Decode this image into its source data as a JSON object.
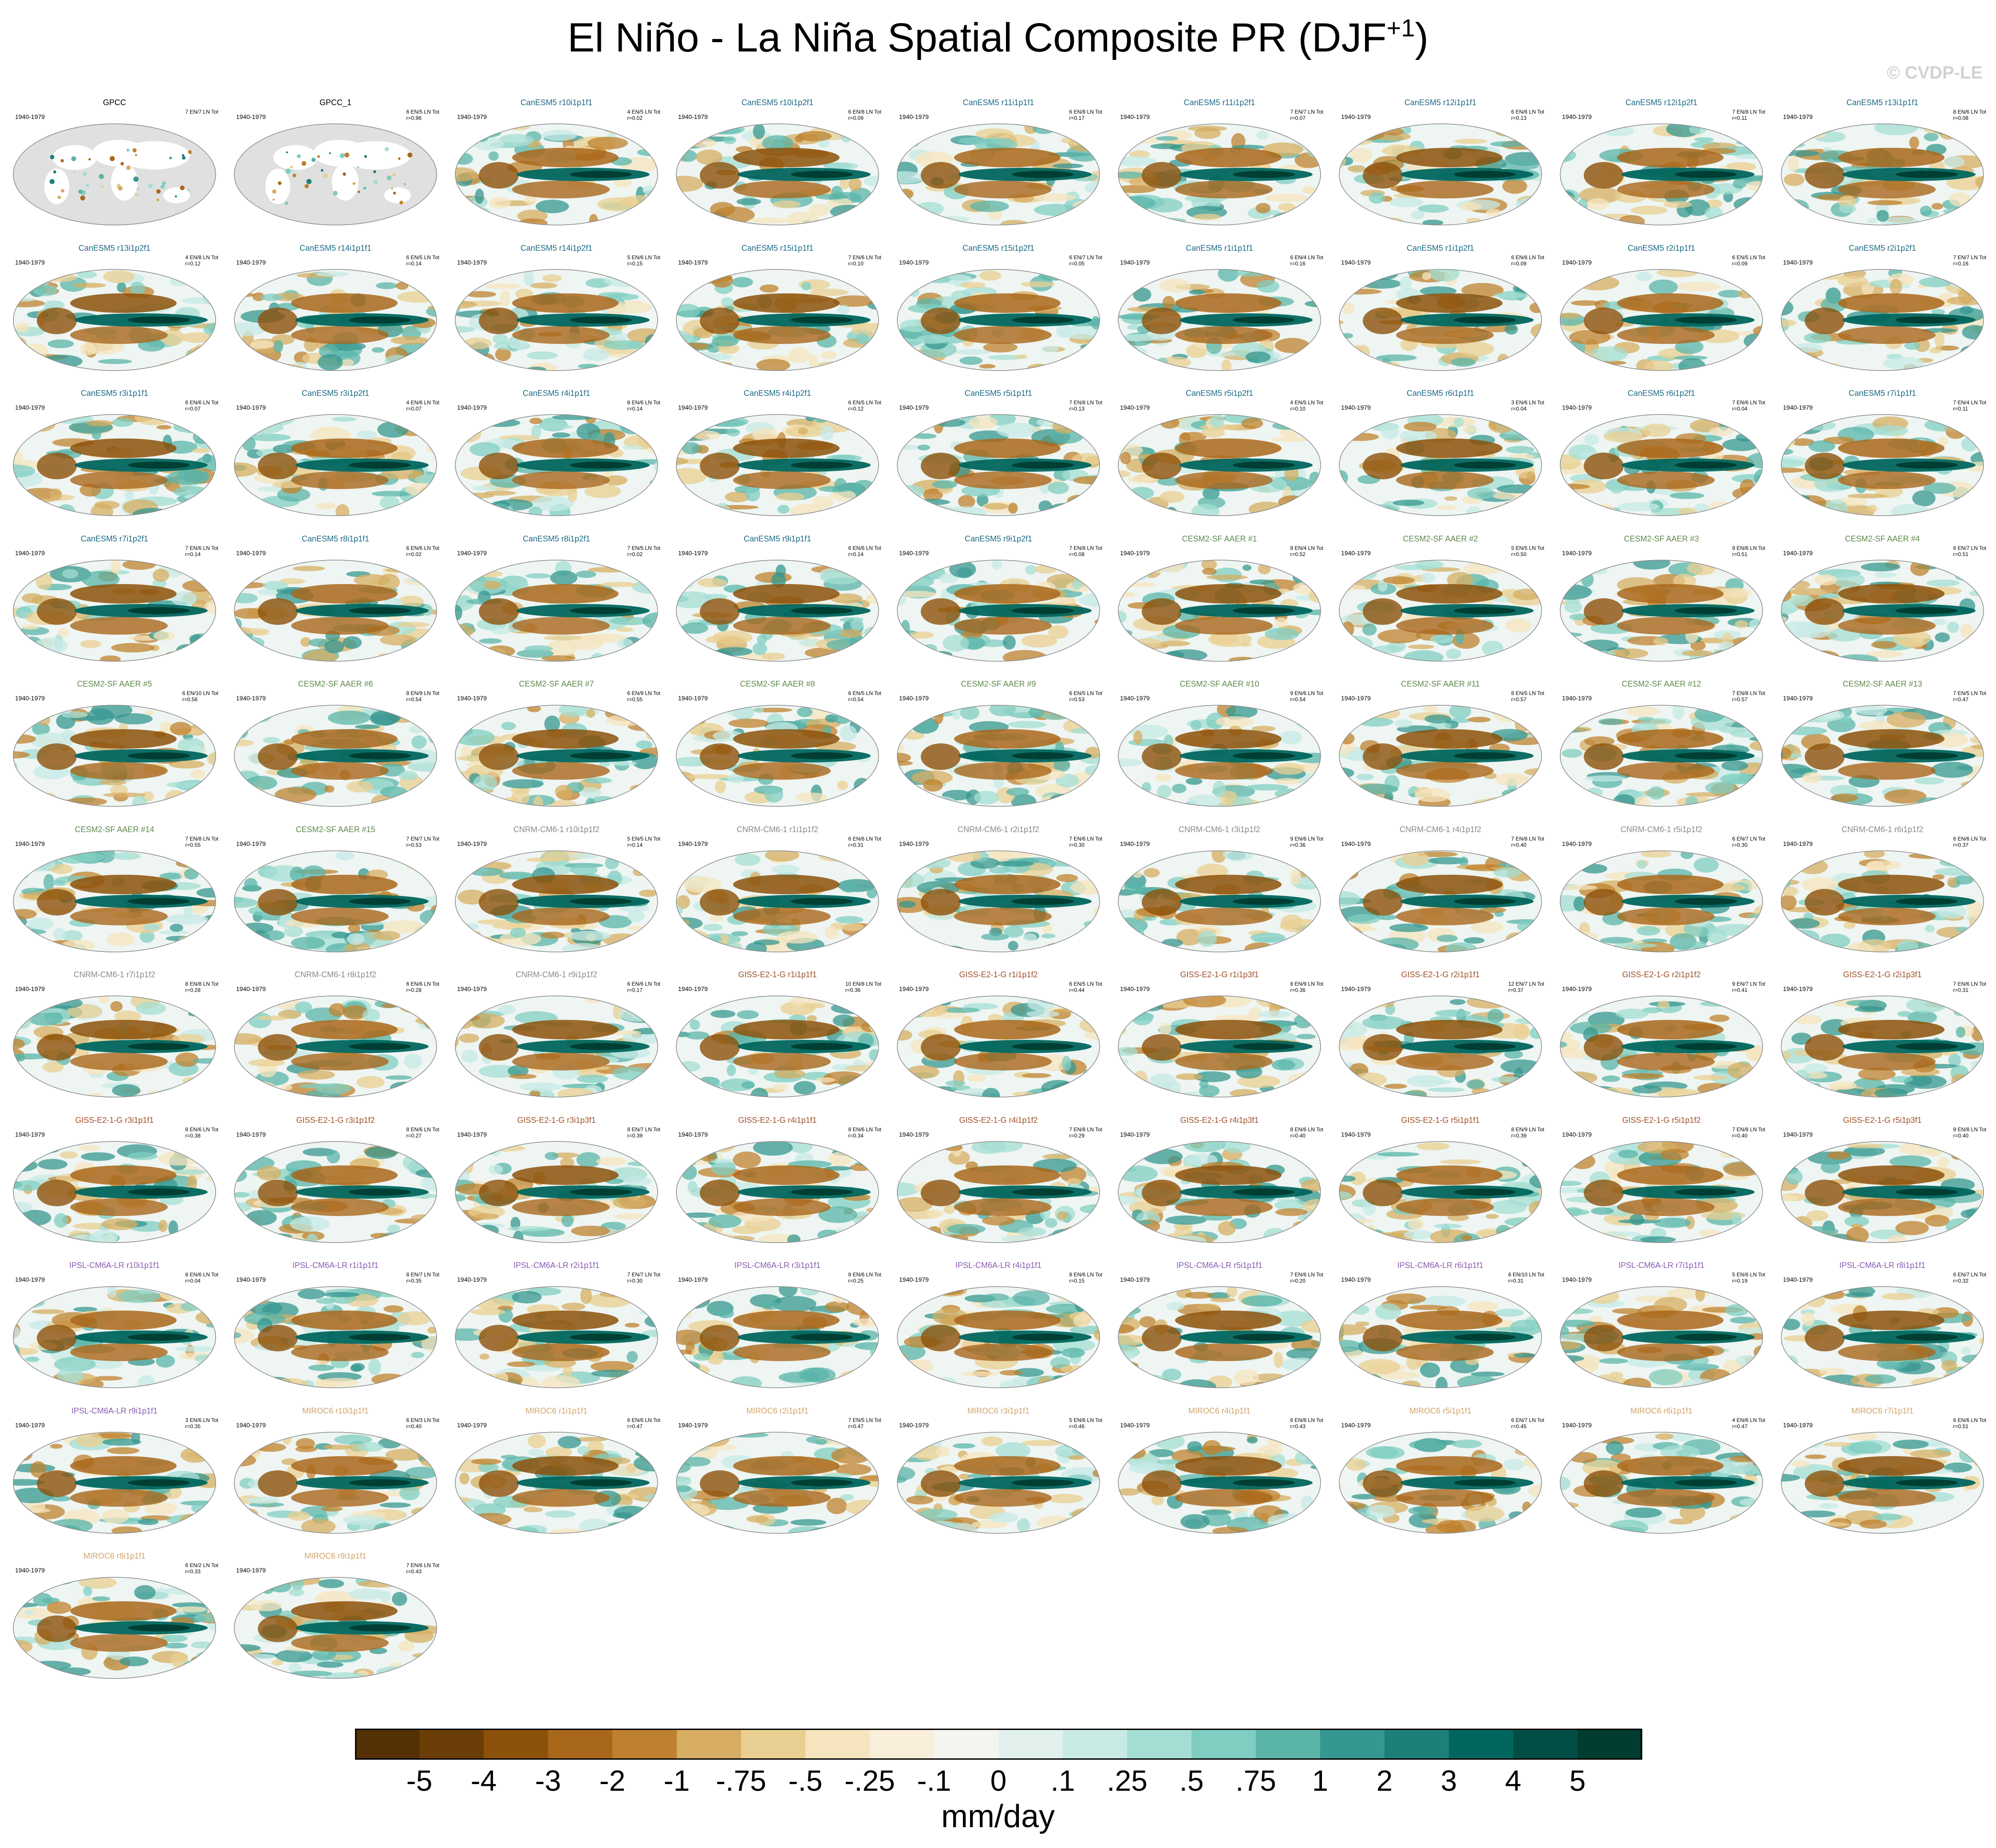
{
  "title_main": "El Niño - La Niña Spatial Composite PR (DJF",
  "title_sup": "+1",
  "title_close": ")",
  "watermark": "© CVDP-LE",
  "units": "mm/day",
  "period": "1940-1979",
  "colorbar": {
    "colors": [
      "#543005",
      "#6b3d07",
      "#8c510a",
      "#a9671b",
      "#bf812d",
      "#d6ad62",
      "#e9cf91",
      "#f5e4bd",
      "#f8eed9",
      "#f5f5f0",
      "#e2f1ee",
      "#c7eae5",
      "#a4ddd3",
      "#80cdc1",
      "#5ab4a8",
      "#35978f",
      "#1c8078",
      "#01665e",
      "#014e46",
      "#003c30"
    ],
    "labels": [
      "-5",
      "-4",
      "-3",
      "-2",
      "-1",
      "-.75",
      "-.5",
      "-.25",
      "-.1",
      "0",
      ".1",
      ".25",
      ".5",
      ".75",
      "1",
      "2",
      "3",
      "4",
      "5"
    ]
  },
  "ensemble_colors": {
    "obs": "#000000",
    "CanESM5": "#1b6a86",
    "CESM2": "#5f8a4d",
    "CNRM": "#8a8a8a",
    "GISS": "#a0502a",
    "IPSL": "#8a5bb0",
    "MIROC": "#d1a46a"
  },
  "panels": [
    {
      "title": "GPCC",
      "ens": "obs",
      "stats": "7 EN/7 LN Tot",
      "r": ""
    },
    {
      "title": "GPCC_1",
      "ens": "obs",
      "stats": "6 EN/5 LN Tot",
      "r": "r=0.96"
    },
    {
      "title": "CanESM5 r10i1p1f1",
      "ens": "CanESM5",
      "stats": "4 EN/5 LN Tot",
      "r": "r=0.02"
    },
    {
      "title": "CanESM5 r10i1p2f1",
      "ens": "CanESM5",
      "stats": "6 EN/8 LN Tot",
      "r": "r=0.09"
    },
    {
      "title": "CanESM5 r11i1p1f1",
      "ens": "CanESM5",
      "stats": "6 EN/8 LN Tot",
      "r": "r=0.17"
    },
    {
      "title": "CanESM5 r11i1p2f1",
      "ens": "CanESM5",
      "stats": "7 EN/7 LN Tot",
      "r": "r=0.07"
    },
    {
      "title": "CanESM5 r12i1p1f1",
      "ens": "CanESM5",
      "stats": "6 EN/6 LN Tot",
      "r": "r=0.13"
    },
    {
      "title": "CanESM5 r12i1p2f1",
      "ens": "CanESM5",
      "stats": "7 EN/8 LN Tot",
      "r": "r=0.11"
    },
    {
      "title": "CanESM5 r13i1p1f1",
      "ens": "CanESM5",
      "stats": "8 EN/6 LN Tot",
      "r": "r=0.08"
    },
    {
      "title": "CanESM5 r13i1p2f1",
      "ens": "CanESM5",
      "stats": "4 EN/8 LN Tot",
      "r": "r=0.12"
    },
    {
      "title": "CanESM5 r14i1p1f1",
      "ens": "CanESM5",
      "stats": "6 EN/5 LN Tot",
      "r": "r=0.14"
    },
    {
      "title": "CanESM5 r14i1p2f1",
      "ens": "CanESM5",
      "stats": "5 EN/6 LN Tot",
      "r": "r=0.15"
    },
    {
      "title": "CanESM5 r15i1p1f1",
      "ens": "CanESM5",
      "stats": "7 EN/6 LN Tot",
      "r": "r=0.10"
    },
    {
      "title": "CanESM5 r15i1p2f1",
      "ens": "CanESM5",
      "stats": "6 EN/7 LN Tot",
      "r": "r=0.05"
    },
    {
      "title": "CanESM5 r1i1p1f1",
      "ens": "CanESM5",
      "stats": "6 EN/4 LN Tot",
      "r": "r=0.16"
    },
    {
      "title": "CanESM5 r1i1p2f1",
      "ens": "CanESM5",
      "stats": "6 EN/6 LN Tot",
      "r": "r=0.09"
    },
    {
      "title": "CanESM5 r2i1p1f1",
      "ens": "CanESM5",
      "stats": "6 EN/5 LN Tot",
      "r": "r=0.09"
    },
    {
      "title": "CanESM5 r2i1p2f1",
      "ens": "CanESM5",
      "stats": "7 EN/7 LN Tot",
      "r": "r=0.16"
    },
    {
      "title": "CanESM5 r3i1p1f1",
      "ens": "CanESM5",
      "stats": "6 EN/6 LN Tot",
      "r": "r=0.07"
    },
    {
      "title": "CanESM5 r3i1p2f1",
      "ens": "CanESM5",
      "stats": "4 EN/6 LN Tot",
      "r": "r=0.07"
    },
    {
      "title": "CanESM5 r4i1p1f1",
      "ens": "CanESM5",
      "stats": "8 EN/6 LN Tot",
      "r": "r=0.14"
    },
    {
      "title": "CanESM5 r4i1p2f1",
      "ens": "CanESM5",
      "stats": "6 EN/5 LN Tot",
      "r": "r=0.12"
    },
    {
      "title": "CanESM5 r5i1p1f1",
      "ens": "CanESM5",
      "stats": "7 EN/8 LN Tot",
      "r": "r=0.13"
    },
    {
      "title": "CanESM5 r5i1p2f1",
      "ens": "CanESM5",
      "stats": "4 EN/5 LN Tot",
      "r": "r=0.10"
    },
    {
      "title": "CanESM5 r6i1p1f1",
      "ens": "CanESM5",
      "stats": "3 EN/6 LN Tot",
      "r": "r=0.04"
    },
    {
      "title": "CanESM5 r6i1p2f1",
      "ens": "CanESM5",
      "stats": "7 EN/6 LN Tot",
      "r": "r=0.04"
    },
    {
      "title": "CanESM5 r7i1p1f1",
      "ens": "CanESM5",
      "stats": "7 EN/4 LN Tot",
      "r": "r=0.11"
    },
    {
      "title": "CanESM5 r7i1p2f1",
      "ens": "CanESM5",
      "stats": "7 EN/6 LN Tot",
      "r": "r=0.14"
    },
    {
      "title": "CanESM5 r8i1p1f1",
      "ens": "CanESM5",
      "stats": "6 EN/6 LN Tot",
      "r": "r=0.02"
    },
    {
      "title": "CanESM5 r8i1p2f1",
      "ens": "CanESM5",
      "stats": "7 EN/5 LN Tot",
      "r": "r=0.02"
    },
    {
      "title": "CanESM5 r9i1p1f1",
      "ens": "CanESM5",
      "stats": "6 EN/6 LN Tot",
      "r": "r=0.14"
    },
    {
      "title": "CanESM5 r9i1p2f1",
      "ens": "CanESM5",
      "stats": "7 EN/8 LN Tot",
      "r": "r=0.08"
    },
    {
      "title": "CESM2-SF AAER #1",
      "ens": "CESM2",
      "stats": "8 EN/4 LN Tot",
      "r": "r=0.52"
    },
    {
      "title": "CESM2-SF AAER #2",
      "ens": "CESM2",
      "stats": "5 EN/5 LN Tot",
      "r": "r=0.50"
    },
    {
      "title": "CESM2-SF AAER #3",
      "ens": "CESM2",
      "stats": "9 EN/6 LN Tot",
      "r": "r=0.51"
    },
    {
      "title": "CESM2-SF AAER #4",
      "ens": "CESM2",
      "stats": "6 EN/7 LN Tot",
      "r": "r=0.51"
    },
    {
      "title": "CESM2-SF AAER #5",
      "ens": "CESM2",
      "stats": "6 EN/10 LN Tot",
      "r": "r=0.56"
    },
    {
      "title": "CESM2-SF AAER #6",
      "ens": "CESM2",
      "stats": "8 EN/9 LN Tot",
      "r": "r=0.54"
    },
    {
      "title": "CESM2-SF AAER #7",
      "ens": "CESM2",
      "stats": "6 EN/9 LN Tot",
      "r": "r=0.55"
    },
    {
      "title": "CESM2-SF AAER #8",
      "ens": "CESM2",
      "stats": "6 EN/5 LN Tot",
      "r": "r=0.54"
    },
    {
      "title": "CESM2-SF AAER #9",
      "ens": "CESM2",
      "stats": "6 EN/5 LN Tot",
      "r": "r=0.53"
    },
    {
      "title": "CESM2-SF AAER #10",
      "ens": "CESM2",
      "stats": "9 EN/6 LN Tot",
      "r": "r=0.54"
    },
    {
      "title": "CESM2-SF AAER #11",
      "ens": "CESM2",
      "stats": "8 EN/5 LN Tot",
      "r": "r=0.57"
    },
    {
      "title": "CESM2-SF AAER #12",
      "ens": "CESM2",
      "stats": "7 EN/8 LN Tot",
      "r": "r=0.57"
    },
    {
      "title": "CESM2-SF AAER #13",
      "ens": "CESM2",
      "stats": "7 EN/5 LN Tot",
      "r": "r=0.47"
    },
    {
      "title": "CESM2-SF AAER #14",
      "ens": "CESM2",
      "stats": "7 EN/8 LN Tot",
      "r": "r=0.55"
    },
    {
      "title": "CESM2-SF AAER #15",
      "ens": "CESM2",
      "stats": "7 EN/7 LN Tot",
      "r": "r=0.53"
    },
    {
      "title": "CNRM-CM6-1 r10i1p1f2",
      "ens": "CNRM",
      "stats": "5 EN/5 LN Tot",
      "r": "r=0.14"
    },
    {
      "title": "CNRM-CM6-1 r1i1p1f2",
      "ens": "CNRM",
      "stats": "6 EN/6 LN Tot",
      "r": "r=0.31"
    },
    {
      "title": "CNRM-CM6-1 r2i1p1f2",
      "ens": "CNRM",
      "stats": "7 EN/6 LN Tot",
      "r": "r=0.30"
    },
    {
      "title": "CNRM-CM6-1 r3i1p1f2",
      "ens": "CNRM",
      "stats": "9 EN/6 LN Tot",
      "r": "r=0.36"
    },
    {
      "title": "CNRM-CM6-1 r4i1p1f2",
      "ens": "CNRM",
      "stats": "7 EN/8 LN Tot",
      "r": "r=0.40"
    },
    {
      "title": "CNRM-CM6-1 r5i1p1f2",
      "ens": "CNRM",
      "stats": "6 EN/7 LN Tot",
      "r": "r=0.30"
    },
    {
      "title": "CNRM-CM6-1 r6i1p1f2",
      "ens": "CNRM",
      "stats": "6 EN/6 LN Tot",
      "r": "r=0.37"
    },
    {
      "title": "CNRM-CM6-1 r7i1p1f2",
      "ens": "CNRM",
      "stats": "8 EN/8 LN Tot",
      "r": "r=0.28"
    },
    {
      "title": "CNRM-CM6-1 r8i1p1f2",
      "ens": "CNRM",
      "stats": "6 EN/6 LN Tot",
      "r": "r=0.28"
    },
    {
      "title": "CNRM-CM6-1 r9i1p1f2",
      "ens": "CNRM",
      "stats": "6 EN/6 LN Tot",
      "r": "r=0.17"
    },
    {
      "title": "GISS-E2-1-G r1i1p1f1",
      "ens": "GISS",
      "stats": "10 EN/8 LN Tot",
      "r": "r=0.36"
    },
    {
      "title": "GISS-E2-1-G r1i1p1f2",
      "ens": "GISS",
      "stats": "6 EN/5 LN Tot",
      "r": "r=0.44"
    },
    {
      "title": "GISS-E2-1-G r1i1p3f1",
      "ens": "GISS",
      "stats": "8 EN/9 LN Tot",
      "r": "r=0.36"
    },
    {
      "title": "GISS-E2-1-G r2i1p1f1",
      "ens": "GISS",
      "stats": "12 EN/7 LN Tot",
      "r": "r=0.37"
    },
    {
      "title": "GISS-E2-1-G r2i1p1f2",
      "ens": "GISS",
      "stats": "9 EN/7 LN Tot",
      "r": "r=0.41"
    },
    {
      "title": "GISS-E2-1-G r2i1p3f1",
      "ens": "GISS",
      "stats": "7 EN/6 LN Tot",
      "r": "r=0.31"
    },
    {
      "title": "GISS-E2-1-G r3i1p1f1",
      "ens": "GISS",
      "stats": "8 EN/6 LN Tot",
      "r": "r=0.38"
    },
    {
      "title": "GISS-E2-1-G r3i1p1f2",
      "ens": "GISS",
      "stats": "8 EN/6 LN Tot",
      "r": "r=0.27"
    },
    {
      "title": "GISS-E2-1-G r3i1p3f1",
      "ens": "GISS",
      "stats": "8 EN/7 LN Tot",
      "r": "r=0.39"
    },
    {
      "title": "GISS-E2-1-G r4i1p1f1",
      "ens": "GISS",
      "stats": "8 EN/6 LN Tot",
      "r": "r=0.34"
    },
    {
      "title": "GISS-E2-1-G r4i1p1f2",
      "ens": "GISS",
      "stats": "7 EN/8 LN Tot",
      "r": "r=0.29"
    },
    {
      "title": "GISS-E2-1-G r4i1p3f1",
      "ens": "GISS",
      "stats": "8 EN/6 LN Tot",
      "r": "r=0.40"
    },
    {
      "title": "GISS-E2-1-G r5i1p1f1",
      "ens": "GISS",
      "stats": "8 EN/9 LN Tot",
      "r": "r=0.39"
    },
    {
      "title": "GISS-E2-1-G r5i1p1f2",
      "ens": "GISS",
      "stats": "7 EN/8 LN Tot",
      "r": "r=0.40"
    },
    {
      "title": "GISS-E2-1-G r5i1p3f1",
      "ens": "GISS",
      "stats": "9 EN/8 LN Tot",
      "r": "r=0.40"
    },
    {
      "title": "IPSL-CM6A-LR r10i1p1f1",
      "ens": "IPSL",
      "stats": "8 EN/6 LN Tot",
      "r": "r=0.04"
    },
    {
      "title": "IPSL-CM6A-LR r1i1p1f1",
      "ens": "IPSL",
      "stats": "8 EN/7 LN Tot",
      "r": "r=0.35"
    },
    {
      "title": "IPSL-CM6A-LR r2i1p1f1",
      "ens": "IPSL",
      "stats": "7 EN/7 LN Tot",
      "r": "r=0.30"
    },
    {
      "title": "IPSL-CM6A-LR r3i1p1f1",
      "ens": "IPSL",
      "stats": "8 EN/6 LN Tot",
      "r": "r=0.25"
    },
    {
      "title": "IPSL-CM6A-LR r4i1p1f1",
      "ens": "IPSL",
      "stats": "8 EN/6 LN Tot",
      "r": "r=0.15"
    },
    {
      "title": "IPSL-CM6A-LR r5i1p1f1",
      "ens": "IPSL",
      "stats": "7 EN/6 LN Tot",
      "r": "r=0.20"
    },
    {
      "title": "IPSL-CM6A-LR r6i1p1f1",
      "ens": "IPSL",
      "stats": "6 EN/10 LN Tot",
      "r": "r=0.31"
    },
    {
      "title": "IPSL-CM6A-LR r7i1p1f1",
      "ens": "IPSL",
      "stats": "5 EN/6 LN Tot",
      "r": "r=0.19"
    },
    {
      "title": "IPSL-CM6A-LR r8i1p1f1",
      "ens": "IPSL",
      "stats": "6 EN/7 LN Tot",
      "r": "r=0.32"
    },
    {
      "title": "IPSL-CM6A-LR r9i1p1f1",
      "ens": "IPSL",
      "stats": "3 EN/6 LN Tot",
      "r": "r=0.35"
    },
    {
      "title": "MIROC6 r10i1p1f1",
      "ens": "MIROC",
      "stats": "6 EN/3 LN Tot",
      "r": "r=0.40"
    },
    {
      "title": "MIROC6 r1i1p1f1",
      "ens": "MIROC",
      "stats": "6 EN/6 LN Tot",
      "r": "r=0.47"
    },
    {
      "title": "MIROC6 r2i1p1f1",
      "ens": "MIROC",
      "stats": "7 EN/5 LN Tot",
      "r": "r=0.47"
    },
    {
      "title": "MIROC6 r3i1p1f1",
      "ens": "MIROC",
      "stats": "5 EN/6 LN Tot",
      "r": "r=0.46"
    },
    {
      "title": "MIROC6 r4i1p1f1",
      "ens": "MIROC",
      "stats": "6 EN/8 LN Tot",
      "r": "r=0.43"
    },
    {
      "title": "MIROC6 r5i1p1f1",
      "ens": "MIROC",
      "stats": "6 EN/7 LN Tot",
      "r": "r=0.45"
    },
    {
      "title": "MIROC6 r6i1p1f1",
      "ens": "MIROC",
      "stats": "4 EN/6 LN Tot",
      "r": "r=0.47"
    },
    {
      "title": "MIROC6 r7i1p1f1",
      "ens": "MIROC",
      "stats": "6 EN/6 LN Tot",
      "r": "r=0.51"
    },
    {
      "title": "MIROC6 r8i1p1f1",
      "ens": "MIROC",
      "stats": "6 EN/2 LN Tot",
      "r": "r=0.33"
    },
    {
      "title": "MIROC6 r9i1p1f1",
      "ens": "MIROC",
      "stats": "7 EN/6 LN Tot",
      "r": "r=0.43"
    }
  ]
}
